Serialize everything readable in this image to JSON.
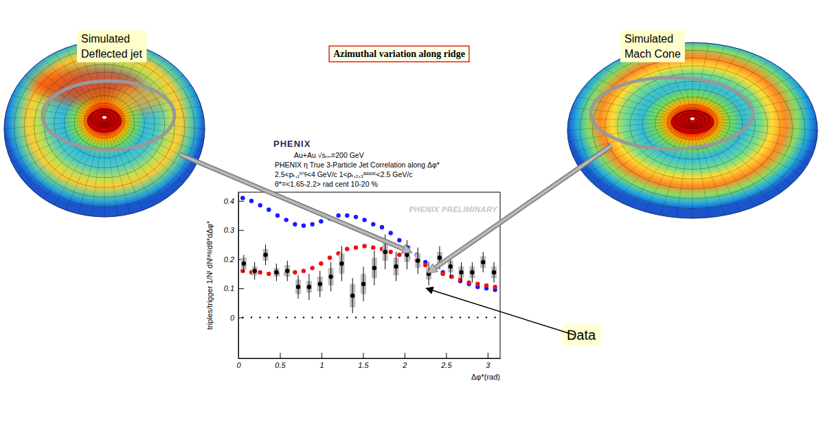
{
  "chart_data": {
    "type": "scatter",
    "title": "Au+Au √sₙₙ=200 GeV",
    "subtitle": [
      "PHENIX η True 3-Particle Jet Correlation along Δφ*",
      "2.5<pₜ,₁ᵗʳⁱᵍ<4 GeV/c 1<pₜ,₂,₃ᵃˢˢᵒᶜ<2.5 GeV/c",
      "θ*=<1.65-2.2> rad      cent 10-20 %"
    ],
    "watermark": "PHENIX PRELIMINARY",
    "xlabel": "Δφ*(rad)",
    "ylabel": "triples/trigger 1/Nᵗ dNᵗᵃᵍ/dθ*dΔφ*",
    "xlim": [
      0,
      3.15
    ],
    "ylim": [
      -0.14,
      0.43
    ],
    "xticks": [
      0,
      0.5,
      1,
      1.5,
      2,
      2.5,
      3
    ],
    "yticks": [
      0,
      0.1,
      0.2,
      0.3,
      0.4
    ],
    "series": [
      {
        "color": "#000000",
        "marker": "dot",
        "x": [
          0.052,
          0.157,
          0.262,
          0.366,
          0.471,
          0.576,
          0.681,
          0.785,
          0.89,
          0.995,
          1.1,
          1.204,
          1.309,
          1.414,
          1.518,
          1.623,
          1.728,
          1.833,
          1.937,
          2.042,
          2.147,
          2.251,
          2.356,
          2.461,
          2.566,
          2.67,
          2.775,
          2.88,
          2.985,
          3.089
        ],
        "values": [
          0,
          0,
          0,
          0,
          0,
          0,
          0,
          0,
          0,
          0,
          0,
          0,
          0,
          0,
          0,
          0,
          0,
          0,
          0,
          0,
          0,
          0,
          0,
          0,
          0,
          0,
          0,
          0,
          0,
          0
        ]
      },
      {
        "color": "#1a1aff",
        "marker": "circle",
        "x": [
          0.052,
          0.157,
          0.262,
          0.366,
          0.471,
          0.576,
          0.681,
          0.785,
          0.89,
          0.995,
          1.1,
          1.204,
          1.309,
          1.414,
          1.518,
          1.623,
          1.728,
          1.833,
          1.937,
          2.042,
          2.147,
          2.251,
          2.356,
          2.461,
          2.566,
          2.67,
          2.775,
          2.88,
          2.985,
          3.089
        ],
        "values": [
          0.41,
          0.4,
          0.385,
          0.37,
          0.35,
          0.335,
          0.32,
          0.315,
          0.32,
          0.33,
          0.34,
          0.35,
          0.35,
          0.345,
          0.335,
          0.32,
          0.31,
          0.29,
          0.265,
          0.24,
          0.215,
          0.19,
          0.17,
          0.155,
          0.14,
          0.125,
          0.115,
          0.105,
          0.1,
          0.095
        ]
      },
      {
        "color": "#ee1111",
        "marker": "circle",
        "x": [
          0.052,
          0.157,
          0.262,
          0.366,
          0.471,
          0.576,
          0.681,
          0.785,
          0.89,
          0.995,
          1.1,
          1.204,
          1.309,
          1.414,
          1.518,
          1.623,
          1.728,
          1.833,
          1.937,
          2.042,
          2.147,
          2.251,
          2.356,
          2.461,
          2.566,
          2.67,
          2.775,
          2.88,
          2.985,
          3.089
        ],
        "values": [
          0.16,
          0.155,
          0.155,
          0.15,
          0.15,
          0.15,
          0.155,
          0.16,
          0.17,
          0.185,
          0.205,
          0.22,
          0.235,
          0.24,
          0.245,
          0.24,
          0.235,
          0.225,
          0.215,
          0.205,
          0.195,
          0.18,
          0.165,
          0.15,
          0.14,
          0.13,
          0.12,
          0.115,
          0.11,
          0.105
        ]
      },
      {
        "color": "#000000",
        "marker": "circle",
        "x": [
          0.065,
          0.196,
          0.327,
          0.458,
          0.589,
          0.72,
          0.851,
          0.982,
          1.113,
          1.244,
          1.374,
          1.505,
          1.636,
          1.767,
          1.898,
          2.029,
          2.16,
          2.291,
          2.422,
          2.553,
          2.683,
          2.814,
          2.945,
          3.076
        ],
        "values": [
          0.185,
          0.16,
          0.215,
          0.155,
          0.16,
          0.105,
          0.105,
          0.115,
          0.14,
          0.185,
          0.075,
          0.115,
          0.17,
          0.225,
          0.175,
          0.215,
          0.195,
          0.15,
          0.205,
          0.175,
          0.155,
          0.155,
          0.19,
          0.155
        ],
        "errors": [
          0.03,
          0.03,
          0.035,
          0.03,
          0.035,
          0.04,
          0.045,
          0.045,
          0.05,
          0.06,
          0.06,
          0.06,
          0.06,
          0.06,
          0.05,
          0.05,
          0.045,
          0.04,
          0.04,
          0.04,
          0.035,
          0.035,
          0.035,
          0.035
        ],
        "sys_errors": [
          0.02,
          0.015,
          0.02,
          0.015,
          0.02,
          0.025,
          0.02,
          0.025,
          0.03,
          0.035,
          0.04,
          0.035,
          0.035,
          0.03,
          0.03,
          0.025,
          0.025,
          0.02,
          0.02,
          0.02,
          0.02,
          0.02,
          0.02,
          0.02
        ]
      }
    ]
  },
  "slide": {
    "left_label": "Simulated Deflected jet",
    "right_label": "Simulated Mach Cone",
    "banner": "Azimuthal variation along ridge",
    "logo": "PHENIX",
    "data_label": "Data"
  }
}
